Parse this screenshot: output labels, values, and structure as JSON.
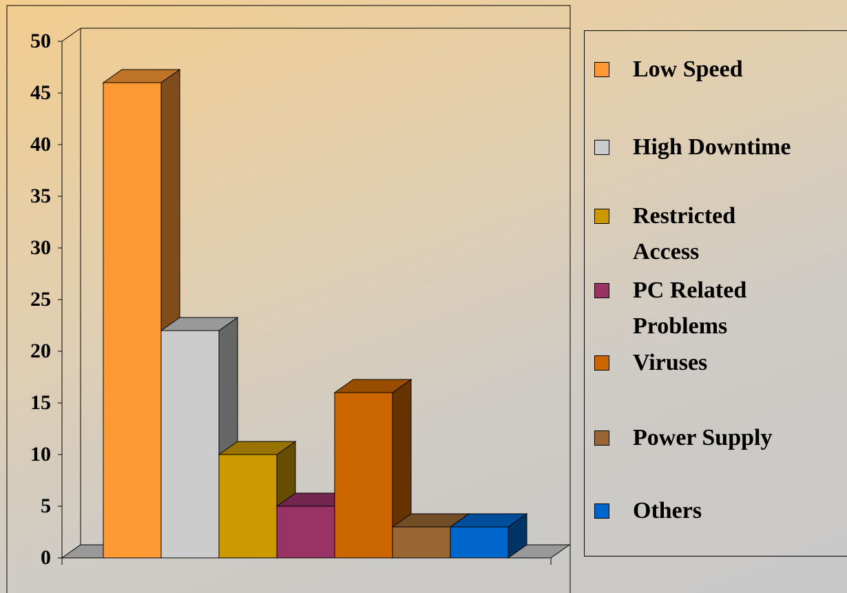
{
  "chart_data": {
    "type": "bar3d",
    "series": [
      {
        "name": "Low Speed",
        "color": "#ff9933",
        "values": [
          46
        ]
      },
      {
        "name": "High Downtime",
        "color": "#cccccc",
        "values": [
          22
        ]
      },
      {
        "name": "Restricted Access",
        "color": "#cc9900",
        "values": [
          10
        ]
      },
      {
        "name": "PC Related Problems",
        "color": "#993366",
        "values": [
          5
        ]
      },
      {
        "name": "Viruses",
        "color": "#cc6600",
        "values": [
          16
        ]
      },
      {
        "name": "Power Supply",
        "color": "#996633",
        "values": [
          3
        ]
      },
      {
        "name": "Others",
        "color": "#0066cc",
        "values": [
          3
        ]
      }
    ],
    "ylim": [
      0,
      50
    ],
    "yticks": [
      0,
      5,
      10,
      15,
      20,
      25,
      30,
      35,
      40,
      45,
      50
    ],
    "legend": "right"
  }
}
